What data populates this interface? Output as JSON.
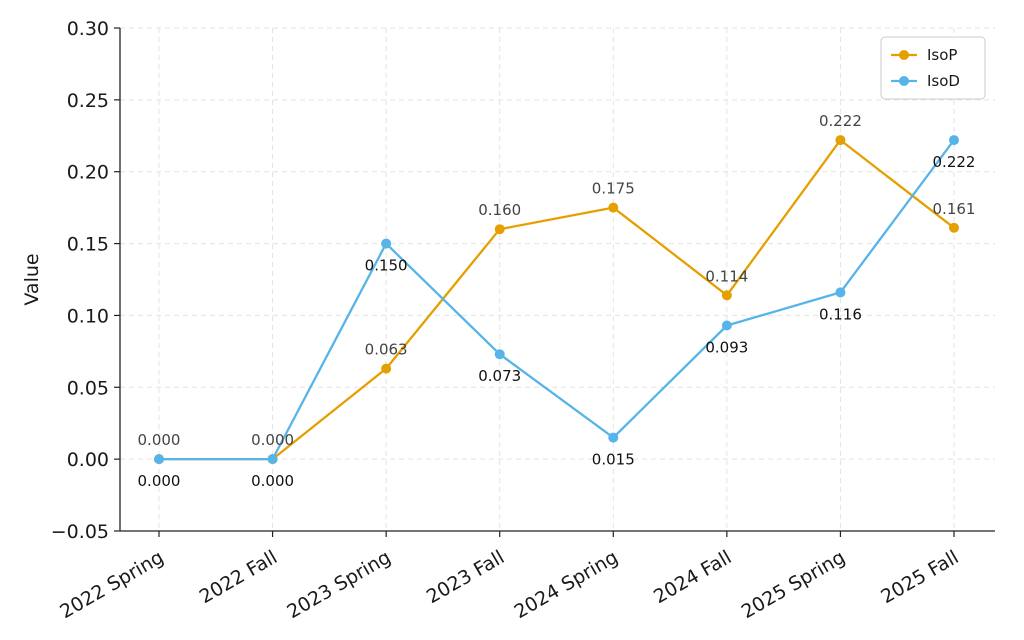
{
  "chart_data": {
    "type": "line",
    "title": "",
    "xlabel": "",
    "ylabel": "Value",
    "categories": [
      "2022 Spring",
      "2022 Fall",
      "2023 Spring",
      "2023 Fall",
      "2024 Spring",
      "2024 Fall",
      "2025 Spring",
      "2025 Fall"
    ],
    "ylim": [
      -0.05,
      0.3
    ],
    "yticks": [
      -0.05,
      0.0,
      0.05,
      0.1,
      0.15,
      0.2,
      0.25,
      0.3
    ],
    "ytick_labels": [
      "−0.05",
      "0.00",
      "0.05",
      "0.10",
      "0.15",
      "0.20",
      "0.25",
      "0.30"
    ],
    "grid": true,
    "legend_position": "top-right",
    "series": [
      {
        "name": "IsoP",
        "color": "#E69F00",
        "label_color": "#444444",
        "label_side": "above",
        "values": [
          0.0,
          0.0,
          0.063,
          0.16,
          0.175,
          0.114,
          0.222,
          0.161
        ],
        "labels": [
          "0.000",
          "0.000",
          "0.063",
          "0.160",
          "0.175",
          "0.114",
          "0.222",
          "0.161"
        ]
      },
      {
        "name": "IsoD",
        "color": "#56B4E9",
        "label_color": "#111111",
        "label_side": "below",
        "values": [
          0.0,
          0.0,
          0.15,
          0.073,
          0.015,
          0.093,
          0.116,
          0.222
        ],
        "labels": [
          "0.000",
          "0.000",
          "0.150",
          "0.073",
          "0.015",
          "0.093",
          "0.116",
          "0.222"
        ]
      }
    ]
  }
}
